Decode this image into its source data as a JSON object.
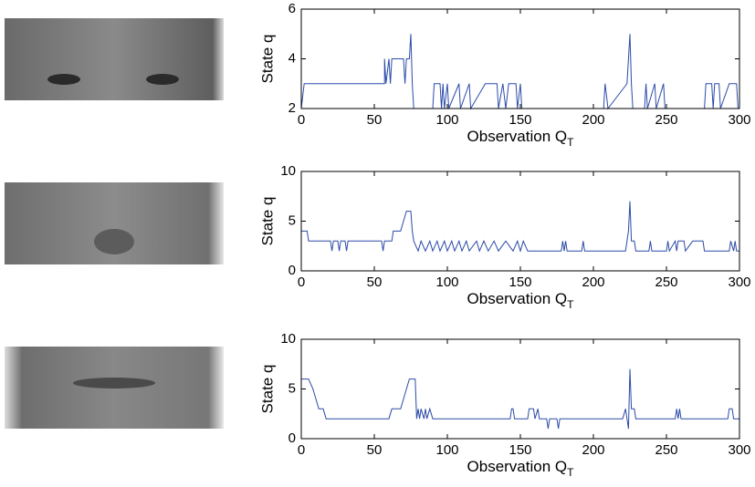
{
  "chart_data": [
    {
      "type": "line",
      "xlabel": "Observation Q",
      "xlabel_subscript": "T",
      "ylabel": "State q",
      "xlim": [
        0,
        300
      ],
      "xticks": [
        0,
        50,
        100,
        150,
        200,
        250,
        300
      ],
      "ylim": [
        2,
        6
      ],
      "yticks": [
        2,
        4,
        6
      ],
      "series": [
        {
          "color": "#2b4aa8",
          "x": [
            0,
            2,
            57,
            57,
            58,
            60,
            61,
            62,
            70,
            71,
            72,
            74,
            75,
            76,
            77,
            90,
            91,
            95,
            96,
            97,
            98,
            100,
            101,
            108,
            109,
            115,
            116,
            126,
            134,
            135,
            138,
            140,
            142,
            147,
            148,
            150,
            151,
            207,
            208,
            210,
            223,
            224,
            225,
            226,
            227,
            235,
            236,
            237,
            242,
            243,
            248,
            249,
            276,
            277,
            281,
            282,
            283,
            286,
            287,
            293,
            298,
            299,
            300
          ],
          "values": [
            2,
            3,
            3,
            4,
            3,
            4,
            3,
            4,
            4,
            3,
            4,
            4,
            5,
            3,
            2,
            2,
            3,
            3,
            2,
            3,
            2,
            3,
            2,
            3,
            2,
            3,
            2,
            3,
            3,
            2,
            3,
            2,
            3,
            3,
            2,
            3,
            2,
            2,
            3,
            2,
            3,
            4,
            5,
            3,
            2,
            2,
            3,
            2,
            3,
            2,
            3,
            2,
            2,
            3,
            3,
            2,
            3,
            3,
            2,
            3,
            3,
            2,
            2
          ]
        }
      ]
    },
    {
      "type": "line",
      "xlabel": "Observation Q",
      "xlabel_subscript": "T",
      "ylabel": "State q",
      "xlim": [
        0,
        300
      ],
      "xticks": [
        0,
        50,
        100,
        150,
        200,
        250,
        300
      ],
      "ylim": [
        0,
        10
      ],
      "yticks": [
        0,
        5,
        10
      ],
      "series": [
        {
          "color": "#2b4aa8",
          "x": [
            0,
            4,
            5,
            20,
            21,
            22,
            25,
            26,
            27,
            30,
            31,
            32,
            55,
            56,
            57,
            62,
            63,
            68,
            70,
            72,
            75,
            76,
            77,
            80,
            82,
            85,
            88,
            90,
            93,
            95,
            98,
            100,
            103,
            105,
            108,
            110,
            113,
            115,
            120,
            122,
            125,
            128,
            132,
            135,
            140,
            145,
            148,
            150,
            152,
            155,
            178,
            179,
            180,
            181,
            182,
            192,
            193,
            194,
            222,
            223,
            224,
            225,
            226,
            228,
            229,
            238,
            239,
            240,
            250,
            251,
            252,
            256,
            257,
            258,
            262,
            263,
            268,
            275,
            276,
            293,
            294,
            296,
            297,
            298,
            300
          ],
          "values": [
            4,
            4,
            3,
            3,
            2,
            3,
            3,
            2,
            3,
            3,
            2,
            3,
            3,
            2,
            3,
            3,
            4,
            4,
            5,
            6,
            6,
            4,
            3,
            2,
            3,
            2,
            3,
            2,
            3,
            2,
            3,
            2,
            3,
            2,
            3,
            2,
            3,
            2,
            3,
            2,
            3,
            2,
            3,
            2,
            3,
            2,
            3,
            2,
            3,
            2,
            2,
            3,
            2,
            3,
            2,
            2,
            3,
            2,
            2,
            3,
            4,
            7,
            3,
            3,
            2,
            2,
            3,
            2,
            2,
            3,
            2,
            3,
            2,
            3,
            3,
            2,
            3,
            3,
            2,
            2,
            3,
            2,
            3,
            2,
            2
          ]
        }
      ]
    },
    {
      "type": "line",
      "xlabel": "Observation Q",
      "xlabel_subscript": "T",
      "ylabel": "State q",
      "xlim": [
        0,
        300
      ],
      "xticks": [
        0,
        50,
        100,
        150,
        200,
        250,
        300
      ],
      "ylim": [
        0,
        10
      ],
      "yticks": [
        0,
        5,
        10
      ],
      "series": [
        {
          "color": "#2b4aa8",
          "x": [
            0,
            5,
            8,
            10,
            12,
            15,
            17,
            60,
            62,
            68,
            70,
            72,
            74,
            78,
            79,
            80,
            81,
            82,
            84,
            85,
            86,
            88,
            90,
            143,
            144,
            145,
            146,
            155,
            156,
            159,
            160,
            162,
            163,
            168,
            169,
            170,
            175,
            176,
            177,
            220,
            222,
            223,
            224,
            225,
            226,
            228,
            229,
            256,
            257,
            258,
            259,
            260,
            292,
            293,
            295,
            296,
            300
          ],
          "values": [
            6,
            6,
            5,
            4,
            3,
            3,
            2,
            2,
            3,
            3,
            4,
            5,
            6,
            6,
            2,
            3,
            2,
            3,
            2,
            3,
            2,
            3,
            2,
            2,
            3,
            3,
            2,
            2,
            3,
            3,
            2,
            3,
            2,
            2,
            1,
            2,
            2,
            1,
            2,
            2,
            3,
            2,
            1,
            7,
            3,
            3,
            2,
            2,
            3,
            2,
            3,
            2,
            2,
            3,
            3,
            2,
            2
          ]
        }
      ]
    }
  ]
}
